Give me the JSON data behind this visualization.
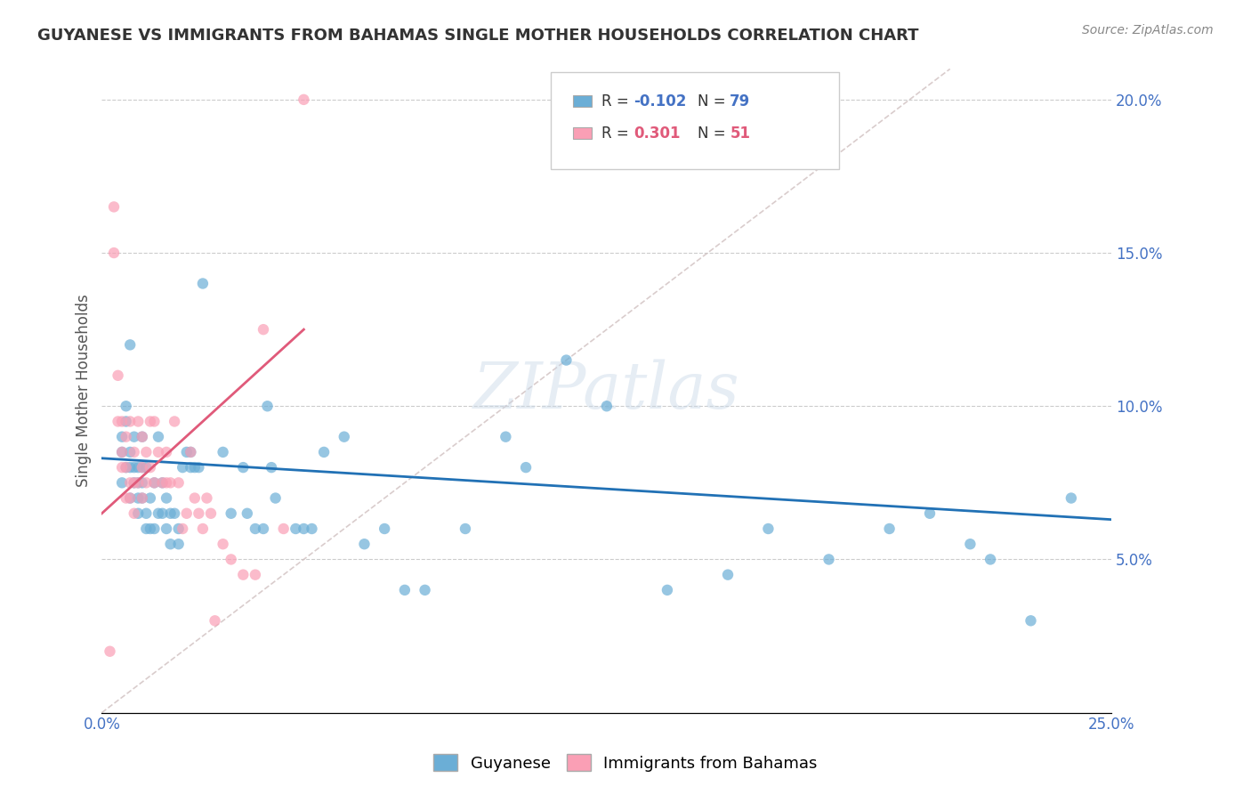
{
  "title": "GUYANESE VS IMMIGRANTS FROM BAHAMAS SINGLE MOTHER HOUSEHOLDS CORRELATION CHART",
  "source": "Source: ZipAtlas.com",
  "xlabel": "",
  "ylabel": "Single Mother Households",
  "xlim": [
    0.0,
    0.25
  ],
  "ylim": [
    0.0,
    0.21
  ],
  "xticks": [
    0.0,
    0.05,
    0.1,
    0.15,
    0.2,
    0.25
  ],
  "xticklabels": [
    "0.0%",
    "",
    "",
    "",
    "",
    "25.0%"
  ],
  "yticks_right": [
    0.05,
    0.1,
    0.15,
    0.2
  ],
  "ytick_labels_right": [
    "5.0%",
    "10.0%",
    "15.0%",
    "20.0%"
  ],
  "legend_label1": "Guyanese",
  "legend_label2": "Immigrants from Bahamas",
  "legend_R1": "-0.102",
  "legend_N1": "79",
  "legend_R2": "0.301",
  "legend_N2": "51",
  "color_blue": "#6baed6",
  "color_pink": "#fa9fb5",
  "color_blue_line": "#2171b5",
  "color_pink_line": "#e05a7a",
  "color_diag": "#d0c0c0",
  "watermark": "ZIPatlas",
  "blue_scatter_x": [
    0.005,
    0.005,
    0.005,
    0.006,
    0.006,
    0.006,
    0.007,
    0.007,
    0.007,
    0.007,
    0.008,
    0.008,
    0.008,
    0.009,
    0.009,
    0.009,
    0.009,
    0.01,
    0.01,
    0.01,
    0.01,
    0.011,
    0.011,
    0.011,
    0.012,
    0.012,
    0.013,
    0.013,
    0.014,
    0.014,
    0.015,
    0.015,
    0.016,
    0.016,
    0.017,
    0.017,
    0.018,
    0.019,
    0.019,
    0.02,
    0.021,
    0.022,
    0.022,
    0.023,
    0.024,
    0.025,
    0.03,
    0.032,
    0.035,
    0.036,
    0.038,
    0.04,
    0.041,
    0.042,
    0.043,
    0.048,
    0.05,
    0.052,
    0.055,
    0.06,
    0.065,
    0.07,
    0.075,
    0.08,
    0.09,
    0.1,
    0.105,
    0.115,
    0.125,
    0.14,
    0.155,
    0.165,
    0.18,
    0.195,
    0.205,
    0.215,
    0.22,
    0.23,
    0.24
  ],
  "blue_scatter_y": [
    0.075,
    0.085,
    0.09,
    0.08,
    0.095,
    0.1,
    0.07,
    0.08,
    0.085,
    0.12,
    0.075,
    0.08,
    0.09,
    0.065,
    0.07,
    0.075,
    0.08,
    0.07,
    0.075,
    0.08,
    0.09,
    0.06,
    0.065,
    0.08,
    0.06,
    0.07,
    0.06,
    0.075,
    0.065,
    0.09,
    0.065,
    0.075,
    0.06,
    0.07,
    0.055,
    0.065,
    0.065,
    0.055,
    0.06,
    0.08,
    0.085,
    0.08,
    0.085,
    0.08,
    0.08,
    0.14,
    0.085,
    0.065,
    0.08,
    0.065,
    0.06,
    0.06,
    0.1,
    0.08,
    0.07,
    0.06,
    0.06,
    0.06,
    0.085,
    0.09,
    0.055,
    0.06,
    0.04,
    0.04,
    0.06,
    0.09,
    0.08,
    0.115,
    0.1,
    0.04,
    0.045,
    0.06,
    0.05,
    0.06,
    0.065,
    0.055,
    0.05,
    0.03,
    0.07
  ],
  "pink_scatter_x": [
    0.002,
    0.003,
    0.003,
    0.004,
    0.004,
    0.005,
    0.005,
    0.005,
    0.006,
    0.006,
    0.006,
    0.007,
    0.007,
    0.007,
    0.008,
    0.008,
    0.008,
    0.009,
    0.009,
    0.01,
    0.01,
    0.01,
    0.011,
    0.011,
    0.012,
    0.012,
    0.013,
    0.013,
    0.014,
    0.015,
    0.016,
    0.016,
    0.017,
    0.018,
    0.019,
    0.02,
    0.021,
    0.022,
    0.023,
    0.024,
    0.025,
    0.026,
    0.027,
    0.028,
    0.03,
    0.032,
    0.035,
    0.038,
    0.04,
    0.045,
    0.05
  ],
  "pink_scatter_y": [
    0.02,
    0.15,
    0.165,
    0.095,
    0.11,
    0.08,
    0.085,
    0.095,
    0.07,
    0.08,
    0.09,
    0.07,
    0.075,
    0.095,
    0.065,
    0.075,
    0.085,
    0.075,
    0.095,
    0.07,
    0.08,
    0.09,
    0.075,
    0.085,
    0.08,
    0.095,
    0.075,
    0.095,
    0.085,
    0.075,
    0.075,
    0.085,
    0.075,
    0.095,
    0.075,
    0.06,
    0.065,
    0.085,
    0.07,
    0.065,
    0.06,
    0.07,
    0.065,
    0.03,
    0.055,
    0.05,
    0.045,
    0.045,
    0.125,
    0.06,
    0.2
  ],
  "blue_line_x": [
    0.0,
    0.25
  ],
  "blue_line_y": [
    0.083,
    0.063
  ],
  "pink_line_x": [
    0.0,
    0.05
  ],
  "pink_line_y": [
    0.065,
    0.125
  ],
  "diag_line_x": [
    0.0,
    0.21
  ],
  "diag_line_y": [
    0.0,
    0.21
  ]
}
